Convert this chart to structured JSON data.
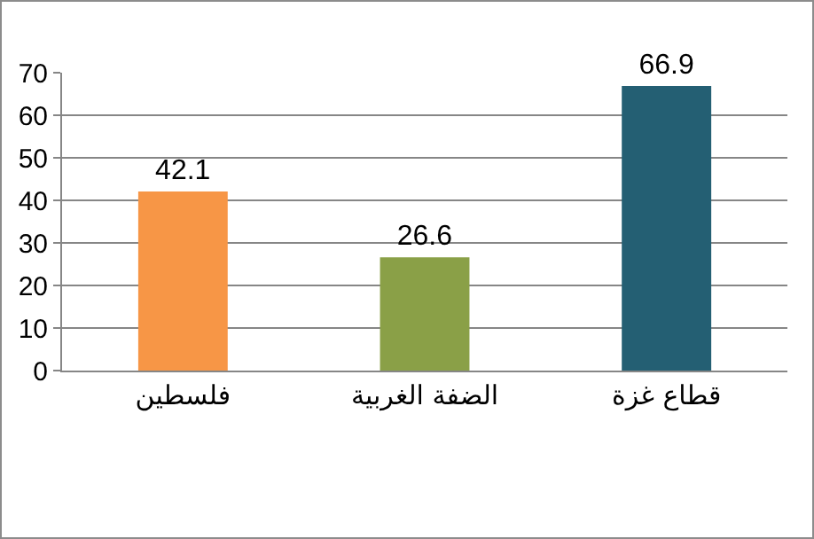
{
  "chart_data": {
    "type": "bar",
    "categories": [
      "فلسطين",
      "الضفة الغربية",
      "قطاع غزة"
    ],
    "values": [
      42.1,
      26.6,
      66.9
    ],
    "colors": [
      "#f79646",
      "#8aa047",
      "#245f73"
    ],
    "ylim": [
      0,
      70
    ],
    "yticks": [
      0,
      10,
      20,
      30,
      40,
      50,
      60,
      70
    ],
    "grid": "y",
    "data_labels": true
  }
}
